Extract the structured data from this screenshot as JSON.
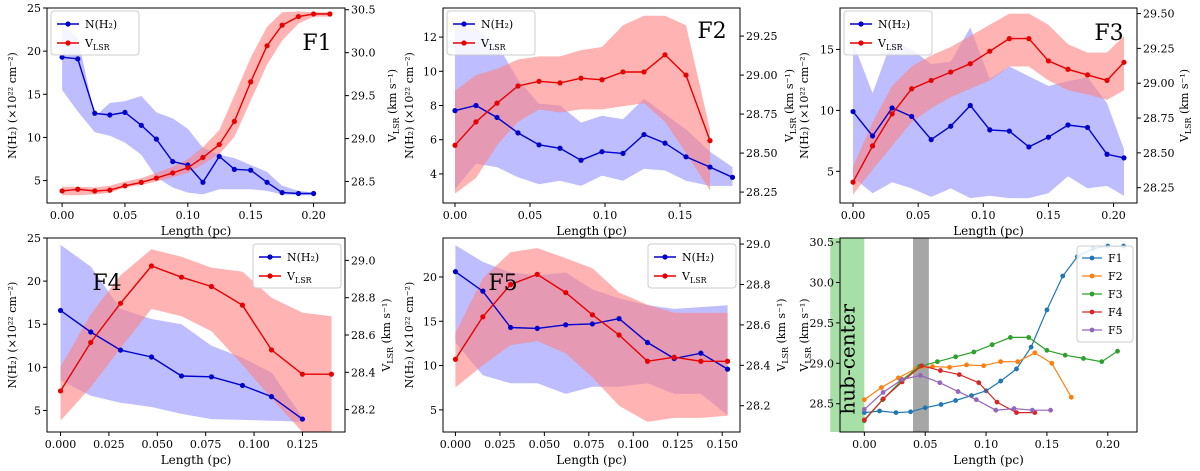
{
  "colors": {
    "nh2": "#0000cc",
    "nh2_band": "#9999ff",
    "vlsr": "#e60000",
    "vlsr_band": "#ff8080",
    "F1": "#1f77b4",
    "F2": "#ff7f0e",
    "F3": "#2ca02c",
    "F4": "#d62728",
    "F5": "#9467bd",
    "hub_band": "#90d890",
    "gray_band": "#a6a6a6"
  },
  "chart_data": [
    {
      "type": "line",
      "id": "F1",
      "label": "F1",
      "xlabel": "Length (pc)",
      "ylabel_left": "N(H₂) (×10²² cm⁻²)",
      "ylabel_right": "V_LSR (km s⁻¹)",
      "xlim": [
        -0.012,
        0.225
      ],
      "ylim_left": [
        2.4,
        25
      ],
      "ylim_right": [
        28.25,
        30.52
      ],
      "xticks": [
        0.0,
        0.05,
        0.1,
        0.15,
        0.2
      ],
      "xtick_labels": [
        "0.00",
        "0.05",
        "0.10",
        "0.15",
        "0.20"
      ],
      "yticks_left": [
        5,
        10,
        15,
        20,
        25
      ],
      "yticks_right": [
        28.5,
        29.0,
        29.5,
        30.0,
        30.5
      ],
      "ytick_labels_right": [
        "28.5",
        "29.0",
        "29.5",
        "30.0",
        "30.5"
      ],
      "legend": [
        "N(H₂)",
        "V_LSR"
      ],
      "nh2": {
        "x": [
          0,
          0.0125,
          0.026,
          0.038,
          0.05,
          0.063,
          0.075,
          0.088,
          0.1,
          0.112,
          0.125,
          0.137,
          0.15,
          0.163,
          0.175,
          0.188,
          0.2
        ],
        "y": [
          19.3,
          19.1,
          12.8,
          12.6,
          12.9,
          11.4,
          9.8,
          7.2,
          6.8,
          4.8,
          7.8,
          6.3,
          6.2,
          4.8,
          3.6,
          3.5,
          3.5
        ],
        "lo": [
          15.5,
          13.0,
          10.6,
          10.2,
          9.4,
          8.0,
          5.4,
          4.2,
          3.6,
          3.4,
          4.0,
          4.0,
          4.0,
          3.8,
          3.4,
          3.3,
          3.3
        ],
        "hi": [
          23.0,
          21.6,
          12.4,
          14.0,
          14.2,
          14.8,
          12.9,
          12.2,
          11.0,
          8.8,
          8.0,
          7.6,
          6.8,
          6.0,
          4.4,
          3.8,
          3.6
        ]
      },
      "vlsr": {
        "x": [
          0,
          0.0125,
          0.026,
          0.038,
          0.05,
          0.063,
          0.075,
          0.088,
          0.1,
          0.112,
          0.125,
          0.137,
          0.15,
          0.163,
          0.175,
          0.188,
          0.2,
          0.213
        ],
        "y": [
          28.39,
          28.41,
          28.39,
          28.4,
          28.45,
          28.49,
          28.54,
          28.6,
          28.66,
          28.78,
          28.93,
          29.2,
          29.66,
          30.08,
          30.32,
          30.42,
          30.45,
          30.45
        ],
        "lo": [
          28.34,
          28.34,
          28.35,
          28.37,
          28.43,
          28.46,
          28.5,
          28.55,
          28.6,
          28.7,
          28.82,
          29.02,
          29.44,
          29.86,
          30.14,
          30.34,
          30.42,
          30.42
        ],
        "hi": [
          28.44,
          28.44,
          28.43,
          28.45,
          28.5,
          28.54,
          28.6,
          28.67,
          28.76,
          28.9,
          29.1,
          29.5,
          29.94,
          30.3,
          30.47,
          30.48,
          30.47,
          30.47
        ]
      }
    },
    {
      "type": "line",
      "id": "F2",
      "label": "F2",
      "xlabel": "Length (pc)",
      "ylabel_left": "N(H₂) (×10²² cm⁻²)",
      "ylabel_right": "V_LSR (km s⁻¹)",
      "xlim": [
        -0.008,
        0.19
      ],
      "ylim_left": [
        2.3,
        13.7
      ],
      "ylim_right": [
        28.18,
        29.43
      ],
      "xticks": [
        0.0,
        0.05,
        0.1,
        0.15
      ],
      "xtick_labels": [
        "0.00",
        "0.05",
        "0.10",
        "0.15"
      ],
      "yticks_left": [
        4,
        6,
        8,
        10,
        12
      ],
      "yticks_right": [
        28.25,
        28.5,
        28.75,
        29.0,
        29.25
      ],
      "ytick_labels_right": [
        "28.25",
        "28.50",
        "28.75",
        "29.00",
        "29.25"
      ],
      "legend": [
        "N(H₂)",
        "V_LSR"
      ],
      "nh2": {
        "x": [
          0,
          0.014,
          0.028,
          0.042,
          0.056,
          0.07,
          0.084,
          0.098,
          0.112,
          0.126,
          0.14,
          0.154,
          0.17,
          0.185
        ],
        "y": [
          7.7,
          8.0,
          7.3,
          6.4,
          5.7,
          5.5,
          4.8,
          5.3,
          5.2,
          6.3,
          5.8,
          5.0,
          4.4,
          3.8
        ],
        "lo": [
          3.1,
          4.6,
          4.4,
          3.8,
          3.4,
          3.6,
          3.3,
          3.9,
          3.6,
          4.3,
          4.2,
          3.6,
          3.3,
          3.3
        ],
        "hi": [
          12.8,
          12.5,
          11.6,
          9.5,
          8.1,
          8.0,
          7.0,
          7.4,
          7.2,
          8.4,
          7.5,
          6.6,
          5.3,
          4.4
        ]
      },
      "vlsr": {
        "x": [
          0,
          0.014,
          0.028,
          0.042,
          0.056,
          0.07,
          0.084,
          0.098,
          0.112,
          0.126,
          0.14,
          0.154,
          0.17
        ],
        "y": [
          28.55,
          28.7,
          28.82,
          28.93,
          28.96,
          28.95,
          28.98,
          28.97,
          29.02,
          29.02,
          29.13,
          29.0,
          28.58
        ],
        "lo": [
          28.24,
          28.34,
          28.55,
          28.7,
          28.78,
          28.76,
          28.78,
          28.78,
          28.8,
          28.82,
          28.7,
          28.5,
          28.26
        ],
        "hi": [
          28.9,
          29.0,
          29.04,
          29.1,
          29.12,
          29.12,
          29.16,
          29.18,
          29.32,
          29.38,
          29.38,
          29.32,
          28.65
        ]
      }
    },
    {
      "type": "line",
      "id": "F3",
      "label": "F3",
      "xlabel": "Length (pc)",
      "ylabel_left": "N(H₂) (×10²² cm⁻²)",
      "ylabel_right": "V_LSR (km s⁻¹)",
      "xlim": [
        -0.01,
        0.218
      ],
      "ylim_left": [
        2.4,
        18.4
      ],
      "ylim_right": [
        28.14,
        29.54
      ],
      "xticks": [
        0.0,
        0.05,
        0.1,
        0.15,
        0.2
      ],
      "xtick_labels": [
        "0.00",
        "0.05",
        "0.10",
        "0.15",
        "0.20"
      ],
      "yticks_left": [
        5,
        10,
        15
      ],
      "yticks_right": [
        28.25,
        28.5,
        28.75,
        29.0,
        29.25,
        29.5
      ],
      "ytick_labels_right": [
        "28.25",
        "28.50",
        "28.75",
        "29.00",
        "29.25",
        "29.50"
      ],
      "legend": [
        "N(H₂)",
        "V_LSR"
      ],
      "nh2": {
        "x": [
          0,
          0.015,
          0.03,
          0.045,
          0.06,
          0.075,
          0.09,
          0.105,
          0.12,
          0.135,
          0.15,
          0.165,
          0.18,
          0.195,
          0.208
        ],
        "y": [
          9.9,
          7.9,
          10.2,
          9.5,
          7.6,
          8.7,
          10.4,
          8.4,
          8.3,
          7.0,
          7.8,
          8.8,
          8.6,
          6.4,
          6.1
        ],
        "lo": [
          4.5,
          3.2,
          4.1,
          3.6,
          2.9,
          3.6,
          2.8,
          3.0,
          2.8,
          2.8,
          3.2,
          4.6,
          3.6,
          3.8,
          3.0
        ],
        "hi": [
          15.6,
          11.4,
          15.8,
          15.0,
          13.8,
          14.0,
          16.8,
          12.6,
          13.6,
          12.8,
          12.0,
          12.4,
          12.7,
          10.6,
          6.8
        ]
      },
      "vlsr": {
        "x": [
          0,
          0.015,
          0.03,
          0.045,
          0.06,
          0.075,
          0.09,
          0.105,
          0.12,
          0.135,
          0.15,
          0.165,
          0.18,
          0.195,
          0.208
        ],
        "y": [
          28.29,
          28.55,
          28.78,
          28.96,
          29.02,
          29.08,
          29.14,
          29.23,
          29.32,
          29.32,
          29.16,
          29.1,
          29.06,
          29.02,
          29.15
        ],
        "lo": [
          28.2,
          28.38,
          28.55,
          28.72,
          28.82,
          28.9,
          28.96,
          29.02,
          29.12,
          29.12,
          29.02,
          28.95,
          28.92,
          28.88,
          28.95
        ],
        "hi": [
          28.4,
          28.72,
          28.98,
          29.12,
          29.2,
          29.26,
          29.34,
          29.42,
          29.5,
          29.5,
          29.42,
          29.28,
          29.22,
          29.22,
          29.34
        ]
      }
    },
    {
      "type": "line",
      "id": "F4",
      "label": "F4",
      "xlabel": "Length (pc)",
      "ylabel_left": "N(H₂) (×10²² cm⁻²)",
      "ylabel_right": "V_LSR (km s⁻¹)",
      "xlim": [
        -0.007,
        0.147
      ],
      "ylim_left": [
        2.5,
        25
      ],
      "ylim_right": [
        28.08,
        29.12
      ],
      "xticks": [
        0.0,
        0.025,
        0.05,
        0.075,
        0.1,
        0.125
      ],
      "xtick_labels": [
        "0.000",
        "0.025",
        "0.050",
        "0.075",
        "0.100",
        "0.125"
      ],
      "yticks_left": [
        5,
        10,
        15,
        20,
        25
      ],
      "yticks_right": [
        28.2,
        28.4,
        28.6,
        28.8,
        29.0
      ],
      "ytick_labels_right": [
        "28.2",
        "28.4",
        "28.6",
        "28.8",
        "29.0"
      ],
      "legend": [
        "N(H₂)",
        "V_LSR"
      ],
      "nh2": {
        "x": [
          0,
          0.0156,
          0.031,
          0.047,
          0.0625,
          0.078,
          0.094,
          0.109,
          0.125
        ],
        "y": [
          16.6,
          14.1,
          12.0,
          11.2,
          9.0,
          8.9,
          7.9,
          6.6,
          4.0
        ],
        "lo": [
          8.5,
          6.7,
          5.9,
          5.4,
          4.6,
          4.0,
          3.9,
          3.8,
          3.7
        ],
        "hi": [
          24.2,
          21.7,
          16.8,
          15.6,
          15.0,
          12.5,
          11.1,
          9.4,
          4.2
        ]
      },
      "vlsr": {
        "x": [
          0,
          0.0156,
          0.031,
          0.047,
          0.0625,
          0.078,
          0.094,
          0.109,
          0.125,
          0.14
        ],
        "y": [
          28.3,
          28.56,
          28.77,
          28.97,
          28.91,
          28.86,
          28.76,
          28.52,
          28.39,
          28.39
        ],
        "lo": [
          28.14,
          28.32,
          28.53,
          28.74,
          28.7,
          28.62,
          28.44,
          28.26,
          28.08,
          28.08
        ],
        "hi": [
          28.43,
          28.71,
          28.92,
          29.06,
          29.02,
          28.96,
          28.94,
          28.8,
          28.72,
          28.7
        ]
      }
    },
    {
      "type": "line",
      "id": "F5",
      "label": "F5",
      "xlabel": "Length (pc)",
      "ylabel_left": "N(H₂) (×10²² cm⁻²)",
      "ylabel_right": "V_LSR (km s⁻¹)",
      "xlim": [
        -0.007,
        0.16
      ],
      "ylim_left": [
        2.5,
        24.4
      ],
      "ylim_right": [
        28.07,
        29.03
      ],
      "xticks": [
        0.0,
        0.025,
        0.05,
        0.075,
        0.1,
        0.125,
        0.15
      ],
      "xtick_labels": [
        "0.000",
        "0.025",
        "0.050",
        "0.075",
        "0.100",
        "0.125",
        "0.150"
      ],
      "yticks_left": [
        5,
        10,
        15,
        20
      ],
      "yticks_right": [
        28.2,
        28.4,
        28.6,
        28.8,
        29.0
      ],
      "ytick_labels_right": [
        "28.2",
        "28.4",
        "28.6",
        "28.8",
        "29.0"
      ],
      "legend": [
        "N(H₂)",
        "V_LSR"
      ],
      "nh2": {
        "x": [
          0,
          0.0154,
          0.031,
          0.046,
          0.062,
          0.077,
          0.092,
          0.108,
          0.123,
          0.138,
          0.153
        ],
        "y": [
          20.6,
          18.4,
          14.3,
          14.2,
          14.6,
          14.7,
          15.3,
          12.6,
          10.8,
          11.4,
          9.6
        ],
        "lo": [
          12.6,
          8.9,
          8.0,
          8.0,
          6.8,
          7.6,
          7.6,
          8.0,
          6.8,
          6.8,
          4.4
        ],
        "hi": [
          23.6,
          21.7,
          20.5,
          20.2,
          20.5,
          18.6,
          17.6,
          16.8,
          16.4,
          16.6,
          16.8
        ]
      },
      "vlsr": {
        "x": [
          0,
          0.0154,
          0.031,
          0.046,
          0.062,
          0.077,
          0.092,
          0.108,
          0.123,
          0.138,
          0.153
        ],
        "y": [
          28.43,
          28.64,
          28.8,
          28.85,
          28.76,
          28.65,
          28.55,
          28.42,
          28.44,
          28.42,
          28.42
        ],
        "lo": [
          28.29,
          28.4,
          28.5,
          28.52,
          28.46,
          28.34,
          28.2,
          28.12,
          28.14,
          28.14,
          28.15
        ],
        "hi": [
          28.56,
          28.83,
          28.96,
          28.98,
          28.93,
          28.88,
          28.76,
          28.7,
          28.66,
          28.66,
          28.66
        ]
      }
    },
    {
      "type": "line",
      "id": "summary",
      "xlabel": "Length (pc)",
      "ylabel": "V_LSR (km s⁻¹)",
      "xlim": [
        -0.02,
        0.224
      ],
      "ylim": [
        28.15,
        30.55
      ],
      "xticks": [
        0.0,
        0.05,
        0.1,
        0.15,
        0.2
      ],
      "xtick_labels": [
        "0.00",
        "0.05",
        "0.10",
        "0.15",
        "0.20"
      ],
      "yticks": [
        28.5,
        29.0,
        29.5,
        30.0,
        30.5
      ],
      "ytick_labels": [
        "28.5",
        "29.0",
        "29.5",
        "30.0",
        "30.5"
      ],
      "annotation": "hub-center",
      "hub_band": [
        -0.028,
        0.0
      ],
      "gray_band": [
        0.04,
        0.053
      ],
      "series": [
        {
          "name": "F1",
          "x": [
            0,
            0.0125,
            0.026,
            0.038,
            0.05,
            0.063,
            0.075,
            0.088,
            0.1,
            0.112,
            0.125,
            0.137,
            0.15,
            0.163,
            0.175,
            0.188,
            0.2,
            0.213
          ],
          "values": [
            28.39,
            28.41,
            28.39,
            28.4,
            28.45,
            28.49,
            28.54,
            28.6,
            28.66,
            28.78,
            28.93,
            29.2,
            29.66,
            30.08,
            30.32,
            30.42,
            30.45,
            30.45
          ]
        },
        {
          "name": "F2",
          "x": [
            0,
            0.014,
            0.028,
            0.042,
            0.056,
            0.07,
            0.084,
            0.098,
            0.112,
            0.126,
            0.14,
            0.154,
            0.17
          ],
          "values": [
            28.55,
            28.7,
            28.82,
            28.93,
            28.96,
            28.95,
            28.98,
            28.97,
            29.02,
            29.02,
            29.13,
            29.0,
            28.58
          ]
        },
        {
          "name": "F3",
          "x": [
            0,
            0.015,
            0.03,
            0.045,
            0.06,
            0.075,
            0.09,
            0.105,
            0.12,
            0.135,
            0.15,
            0.165,
            0.18,
            0.195,
            0.208
          ],
          "values": [
            28.29,
            28.55,
            28.78,
            28.96,
            29.02,
            29.08,
            29.14,
            29.23,
            29.32,
            29.32,
            29.16,
            29.1,
            29.06,
            29.02,
            29.15
          ]
        },
        {
          "name": "F4",
          "x": [
            0,
            0.0156,
            0.031,
            0.047,
            0.0625,
            0.078,
            0.094,
            0.109,
            0.125,
            0.14
          ],
          "values": [
            28.3,
            28.56,
            28.77,
            28.97,
            28.91,
            28.86,
            28.76,
            28.52,
            28.39,
            28.39
          ]
        },
        {
          "name": "F5",
          "x": [
            0,
            0.0154,
            0.031,
            0.046,
            0.062,
            0.077,
            0.092,
            0.108,
            0.123,
            0.138,
            0.153
          ],
          "values": [
            28.43,
            28.64,
            28.8,
            28.85,
            28.76,
            28.65,
            28.55,
            28.42,
            28.44,
            28.42,
            28.42
          ]
        }
      ]
    }
  ]
}
